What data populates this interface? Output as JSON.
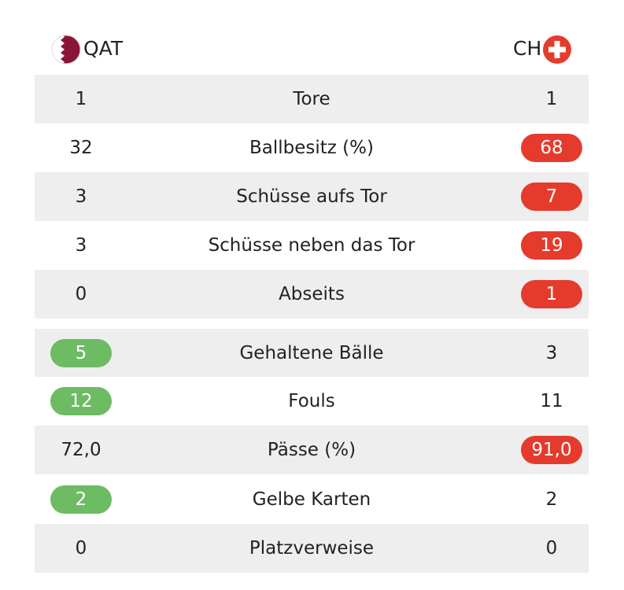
{
  "header": {
    "home": "QAT",
    "away": "CH"
  },
  "rows": [
    {
      "label": "Tore",
      "home": "1",
      "away": "1"
    },
    {
      "label": "Ballbesitz (%)",
      "home": "32",
      "away": "68",
      "away_badge": "#e53b2c"
    },
    {
      "label": "Schüsse aufs Tor",
      "home": "3",
      "away": "7",
      "away_badge": "#e53b2c"
    },
    {
      "label": "Schüsse neben das Tor",
      "home": "3",
      "away": "19",
      "away_badge": "#e53b2c"
    },
    {
      "label": "Abseits",
      "home": "0",
      "away": "1",
      "away_badge": "#e53b2c"
    },
    {
      "label": "Gehaltene Bälle",
      "home": "5",
      "away": "3",
      "home_badge": "#6dbb63"
    },
    {
      "label": "Fouls",
      "home": "12",
      "away": "11",
      "home_badge": "#6dbb63"
    },
    {
      "label": "Pässe (%)",
      "home": "72,0",
      "away": "91,0",
      "away_badge": "#e53b2c"
    },
    {
      "label": "Gelbe Karten",
      "home": "2",
      "away": "2",
      "home_badge": "#6dbb63"
    },
    {
      "label": "Platzverweise",
      "home": "0",
      "away": "0"
    }
  ]
}
